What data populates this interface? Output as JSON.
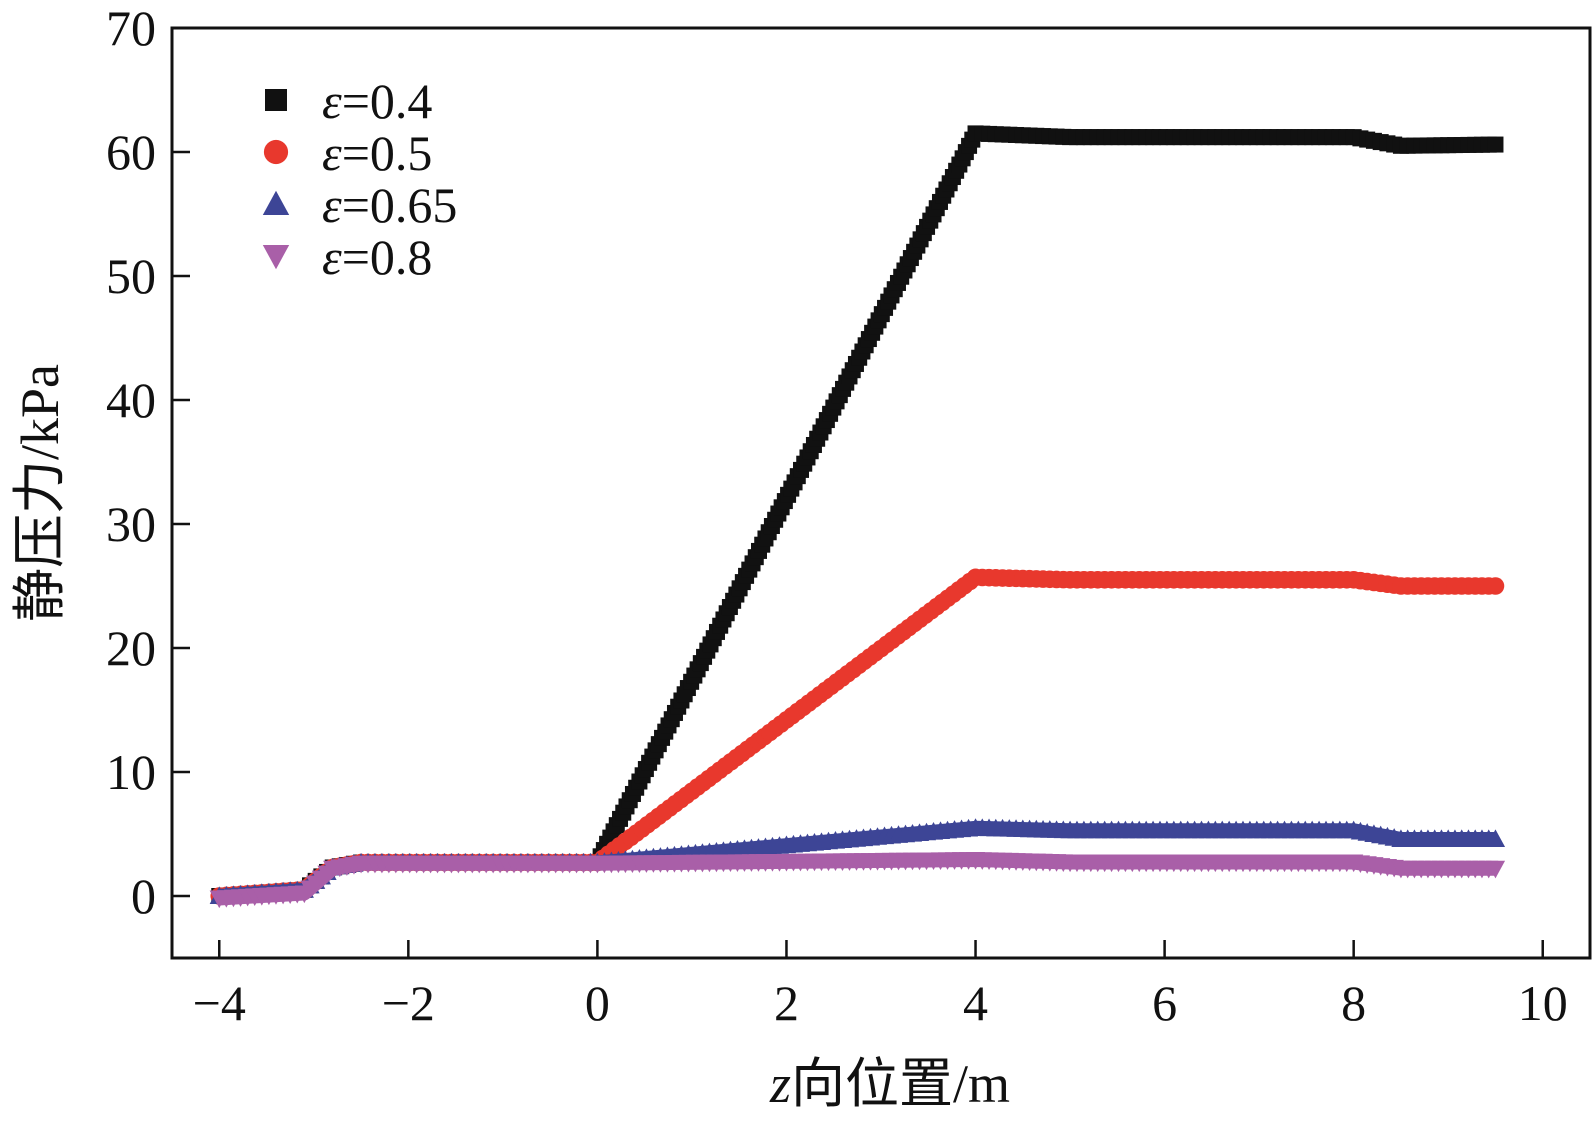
{
  "chart_data": {
    "type": "scatter",
    "xlabel_italic": "z",
    "xlabel_rest": "向位置/m",
    "ylabel": "静压力/kPa",
    "xlim": [
      -4.5,
      10.5
    ],
    "ylim": [
      -5,
      70
    ],
    "xticks": [
      -4,
      -2,
      0,
      2,
      4,
      6,
      8,
      10
    ],
    "xtick_labels": [
      "−4",
      "−2",
      "0",
      "2",
      "4",
      "6",
      "8",
      "10"
    ],
    "yticks": [
      0,
      10,
      20,
      30,
      40,
      50,
      60,
      70
    ],
    "ytick_labels": [
      "0",
      "10",
      "20",
      "30",
      "40",
      "50",
      "60",
      "70"
    ],
    "legend_position": "top-left",
    "series": [
      {
        "name": "ε=0.4",
        "legend_symbol": "ε",
        "legend_value": "=0.4",
        "marker": "square",
        "color": "#111111",
        "x": [
          -4.0,
          -3.1,
          -2.8,
          -2.5,
          0.0,
          4.0,
          5.0,
          8.0,
          8.5,
          9.5
        ],
        "y": [
          0.0,
          0.5,
          2.3,
          2.7,
          2.7,
          61.5,
          61.2,
          61.2,
          60.5,
          60.6
        ]
      },
      {
        "name": "ε=0.5",
        "legend_symbol": "ε",
        "legend_value": "=0.5",
        "marker": "circle",
        "color": "#e8382d",
        "x": [
          -4.0,
          -3.1,
          -2.8,
          -2.5,
          0.0,
          4.0,
          5.0,
          8.0,
          8.5,
          9.5
        ],
        "y": [
          0.0,
          0.5,
          2.3,
          2.7,
          2.7,
          25.7,
          25.5,
          25.5,
          25.0,
          25.0
        ]
      },
      {
        "name": "ε=0.65",
        "legend_symbol": "ε",
        "legend_value": "=0.65",
        "marker": "triangle-up",
        "color": "#3d4596",
        "x": [
          -4.0,
          -3.1,
          -2.8,
          -2.5,
          0.0,
          4.0,
          5.0,
          8.0,
          8.5,
          9.5
        ],
        "y": [
          0.0,
          0.5,
          2.3,
          2.7,
          2.7,
          5.5,
          5.3,
          5.3,
          4.6,
          4.6
        ]
      },
      {
        "name": "ε=0.8",
        "legend_symbol": "ε",
        "legend_value": "=0.8",
        "marker": "triangle-down",
        "color": "#a95fa8",
        "x": [
          -4.0,
          -3.1,
          -2.8,
          -2.5,
          0.0,
          4.0,
          5.0,
          8.0,
          8.5,
          9.5
        ],
        "y": [
          -0.2,
          0.2,
          2.2,
          2.6,
          2.6,
          2.9,
          2.7,
          2.7,
          2.2,
          2.2
        ]
      }
    ]
  }
}
